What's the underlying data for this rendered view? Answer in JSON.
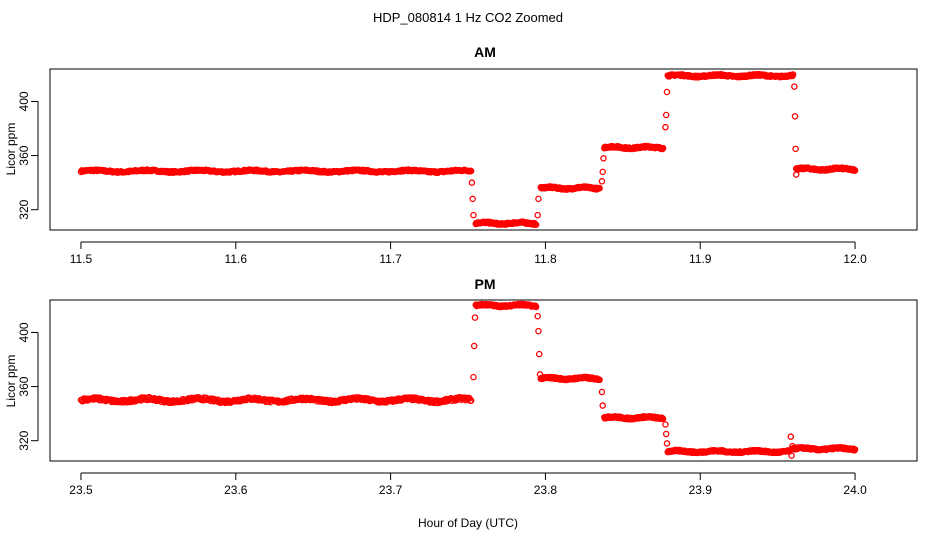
{
  "figure": {
    "title": "HDP_080814  1 Hz CO2 Zoomed",
    "xlabel": "Hour of Day (UTC)"
  },
  "chart_data": [
    {
      "type": "scatter",
      "title": "AM",
      "ylabel": "Licor ppm",
      "xlim": [
        11.48,
        12.04
      ],
      "ylim": [
        305,
        424
      ],
      "xticks": [
        "11.5",
        "11.6",
        "11.7",
        "11.8",
        "11.9",
        "12.0"
      ],
      "yticks": [
        "320",
        "360",
        "400"
      ],
      "marker_color": "#ff0000",
      "segments": [
        {
          "x_start": 11.5,
          "x_end": 11.752,
          "y": 348.5,
          "jitter": 1.0,
          "n": 520
        },
        {
          "x_start": 11.755,
          "x_end": 11.794,
          "y": 310,
          "jitter": 1.0,
          "n": 120
        },
        {
          "x_start": 11.797,
          "x_end": 11.835,
          "y": 336,
          "jitter": 1.0,
          "n": 120
        },
        {
          "x_start": 11.838,
          "x_end": 11.876,
          "y": 366,
          "jitter": 1.0,
          "n": 120
        },
        {
          "x_start": 11.879,
          "x_end": 11.96,
          "y": 419,
          "jitter": 1.0,
          "n": 220
        },
        {
          "x_start": 11.962,
          "x_end": 12.0,
          "y": 350,
          "jitter": 1.0,
          "n": 120
        }
      ],
      "transition_points": [
        {
          "x": 11.7525,
          "y": 340
        },
        {
          "x": 11.753,
          "y": 328
        },
        {
          "x": 11.7535,
          "y": 316
        },
        {
          "x": 11.795,
          "y": 316
        },
        {
          "x": 11.7955,
          "y": 328
        },
        {
          "x": 11.8365,
          "y": 341
        },
        {
          "x": 11.837,
          "y": 348
        },
        {
          "x": 11.8375,
          "y": 358
        },
        {
          "x": 11.8775,
          "y": 381
        },
        {
          "x": 11.878,
          "y": 390
        },
        {
          "x": 11.8785,
          "y": 407
        },
        {
          "x": 11.9608,
          "y": 411
        },
        {
          "x": 11.9612,
          "y": 389
        },
        {
          "x": 11.9616,
          "y": 365
        },
        {
          "x": 11.962,
          "y": 346
        }
      ]
    },
    {
      "type": "scatter",
      "title": "PM",
      "ylabel": "Licor ppm",
      "xlim": [
        23.48,
        24.04
      ],
      "ylim": [
        305,
        424
      ],
      "xticks": [
        "23.5",
        "23.6",
        "23.7",
        "23.8",
        "23.9",
        "24.0"
      ],
      "yticks": [
        "320",
        "360",
        "400"
      ],
      "marker_color": "#ff0000",
      "segments": [
        {
          "x_start": 23.5,
          "x_end": 23.752,
          "y": 350,
          "jitter": 1.8,
          "n": 520
        },
        {
          "x_start": 23.755,
          "x_end": 23.794,
          "y": 420,
          "jitter": 1.0,
          "n": 120
        },
        {
          "x_start": 23.797,
          "x_end": 23.835,
          "y": 366,
          "jitter": 1.0,
          "n": 120
        },
        {
          "x_start": 23.838,
          "x_end": 23.876,
          "y": 337,
          "jitter": 1.0,
          "n": 120
        },
        {
          "x_start": 23.879,
          "x_end": 23.958,
          "y": 312,
          "jitter": 1.0,
          "n": 220
        },
        {
          "x_start": 23.96,
          "x_end": 24.0,
          "y": 314,
          "jitter": 1.0,
          "n": 120
        }
      ],
      "transition_points": [
        {
          "x": 23.7535,
          "y": 367
        },
        {
          "x": 23.754,
          "y": 390
        },
        {
          "x": 23.7545,
          "y": 411
        },
        {
          "x": 23.795,
          "y": 412
        },
        {
          "x": 23.7955,
          "y": 401
        },
        {
          "x": 23.796,
          "y": 384
        },
        {
          "x": 23.7965,
          "y": 369
        },
        {
          "x": 23.8365,
          "y": 356
        },
        {
          "x": 23.837,
          "y": 346
        },
        {
          "x": 23.8775,
          "y": 332
        },
        {
          "x": 23.878,
          "y": 325
        },
        {
          "x": 23.8785,
          "y": 318
        },
        {
          "x": 23.9585,
          "y": 323
        },
        {
          "x": 23.959,
          "y": 309
        },
        {
          "x": 23.9595,
          "y": 316
        }
      ]
    }
  ]
}
